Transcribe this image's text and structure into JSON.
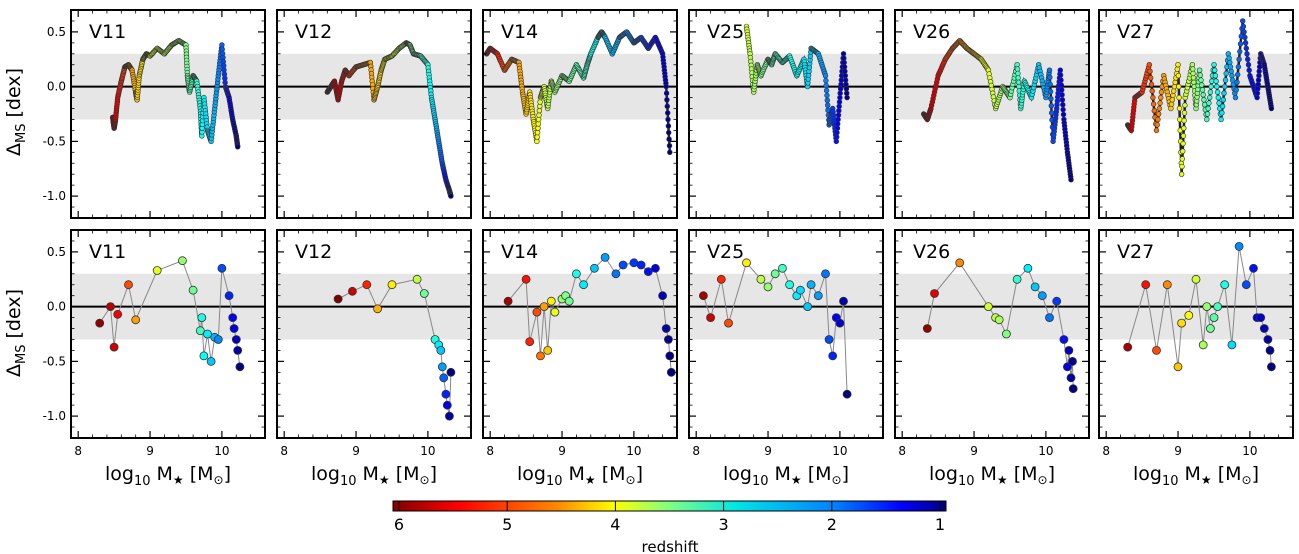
{
  "figure": {
    "ylabel_main": "Δ",
    "ylabel_sub": "MS",
    "ylabel_unit": " [dex]",
    "xlabel_main": "log",
    "xlabel_sub10": "10",
    "xlabel_rest": " M",
    "xlabel_star": "★",
    "xlabel_unit_open": " [M",
    "xlabel_sun": "⊙",
    "xlabel_unit_close": "]",
    "colorbar_label": "redshift",
    "colorbar_ticks": [
      "6",
      "5",
      "4",
      "3",
      "2",
      "1"
    ]
  },
  "chart_data": [
    {
      "type": "scatter",
      "row": "top",
      "panels": [
        "V11",
        "V12",
        "V14",
        "V25",
        "V26",
        "V27"
      ],
      "xlim": [
        7.9,
        10.6
      ],
      "ylim": [
        -1.2,
        0.7
      ],
      "xticks": [
        "8",
        "9",
        "10"
      ],
      "yticks": [
        "0.5",
        "0.0",
        "-0.5",
        "-1.0"
      ],
      "band": [
        -0.3,
        0.3
      ],
      "series": [
        {
          "name": "V11",
          "x": [
            8.48,
            8.5,
            8.52,
            8.55,
            8.6,
            8.65,
            8.7,
            8.75,
            8.8,
            8.82,
            8.85,
            8.9,
            8.95,
            9.0,
            9.1,
            9.2,
            9.3,
            9.4,
            9.5,
            9.52,
            9.55,
            9.6,
            9.65,
            9.7,
            9.72,
            9.75,
            9.8,
            9.85,
            9.9,
            9.95,
            10.0,
            10.05,
            10.1,
            10.15,
            10.2,
            10.22
          ],
          "y": [
            -0.28,
            -0.38,
            -0.3,
            -0.1,
            0.05,
            0.18,
            0.2,
            0.15,
            -0.05,
            -0.12,
            0.1,
            0.25,
            0.3,
            0.28,
            0.35,
            0.3,
            0.38,
            0.42,
            0.38,
            0.1,
            -0.05,
            0.1,
            0.05,
            -0.2,
            -0.45,
            -0.1,
            -0.4,
            -0.5,
            -0.2,
            0.1,
            0.38,
            0.0,
            -0.1,
            -0.3,
            -0.45,
            -0.55
          ],
          "z": [
            5.9,
            5.8,
            5.6,
            5.4,
            5.2,
            5.0,
            4.8,
            4.6,
            4.5,
            4.4,
            4.3,
            4.2,
            4.1,
            4.0,
            3.9,
            3.8,
            3.7,
            3.6,
            3.5,
            3.4,
            3.3,
            3.2,
            3.1,
            3.0,
            2.9,
            2.8,
            2.7,
            2.6,
            2.5,
            2.3,
            2.1,
            1.8,
            1.5,
            1.3,
            1.1,
            1.0
          ]
        },
        {
          "name": "V12",
          "x": [
            8.6,
            8.65,
            8.7,
            8.75,
            8.8,
            8.85,
            8.9,
            9.0,
            9.1,
            9.2,
            9.25,
            9.3,
            9.35,
            9.4,
            9.5,
            9.6,
            9.7,
            9.75,
            9.8,
            9.9,
            10.0,
            10.05,
            10.1,
            10.15,
            10.2,
            10.25,
            10.3,
            10.32
          ],
          "y": [
            -0.05,
            0.0,
            0.05,
            -0.12,
            0.05,
            0.15,
            0.1,
            0.18,
            0.2,
            0.22,
            -0.12,
            0.0,
            0.15,
            0.25,
            0.28,
            0.35,
            0.4,
            0.38,
            0.3,
            0.28,
            0.2,
            -0.1,
            -0.3,
            -0.5,
            -0.7,
            -0.85,
            -0.95,
            -1.0
          ],
          "z": [
            6.0,
            5.9,
            5.8,
            5.7,
            5.6,
            5.4,
            5.2,
            5.0,
            4.8,
            4.6,
            4.5,
            4.4,
            4.3,
            4.2,
            4.0,
            3.8,
            3.6,
            3.5,
            3.4,
            3.2,
            3.0,
            2.8,
            2.6,
            2.3,
            2.0,
            1.6,
            1.2,
            1.0
          ]
        },
        {
          "name": "V14",
          "x": [
            7.95,
            8.0,
            8.1,
            8.2,
            8.3,
            8.4,
            8.45,
            8.5,
            8.55,
            8.6,
            8.65,
            8.7,
            8.75,
            8.8,
            8.85,
            8.9,
            9.0,
            9.1,
            9.2,
            9.3,
            9.35,
            9.4,
            9.5,
            9.55,
            9.6,
            9.7,
            9.8,
            9.9,
            10.0,
            10.1,
            10.2,
            10.3,
            10.4,
            10.45,
            10.5
          ],
          "y": [
            0.3,
            0.35,
            0.3,
            0.15,
            0.25,
            0.22,
            -0.05,
            -0.25,
            -0.05,
            -0.3,
            -0.5,
            -0.1,
            0.0,
            -0.2,
            0.05,
            -0.05,
            0.1,
            0.05,
            0.2,
            0.08,
            0.2,
            0.3,
            0.45,
            0.5,
            0.45,
            0.3,
            0.45,
            0.5,
            0.4,
            0.45,
            0.35,
            0.45,
            0.3,
            0.0,
            -0.6
          ],
          "z": [
            5.6,
            5.5,
            5.3,
            5.0,
            4.8,
            4.6,
            4.5,
            4.4,
            4.3,
            4.2,
            4.1,
            4.0,
            3.9,
            3.8,
            3.7,
            3.6,
            3.5,
            3.4,
            3.3,
            3.2,
            3.1,
            3.0,
            2.8,
            2.7,
            2.6,
            2.5,
            2.4,
            2.3,
            2.2,
            2.0,
            1.8,
            1.6,
            1.4,
            1.2,
            1.0
          ]
        },
        {
          "name": "V25",
          "x": [
            8.7,
            8.75,
            8.8,
            8.85,
            8.9,
            9.0,
            9.05,
            9.1,
            9.2,
            9.3,
            9.4,
            9.5,
            9.55,
            9.6,
            9.7,
            9.8,
            9.85,
            9.9,
            9.95,
            10.0,
            10.05,
            10.1
          ],
          "y": [
            0.55,
            0.3,
            -0.05,
            0.2,
            0.1,
            0.25,
            0.2,
            0.3,
            0.22,
            0.28,
            0.1,
            0.25,
            0.0,
            0.35,
            0.3,
            0.1,
            -0.35,
            -0.2,
            -0.5,
            -0.1,
            0.3,
            -0.1
          ],
          "z": [
            3.9,
            3.8,
            3.7,
            3.6,
            3.5,
            3.4,
            3.3,
            3.2,
            3.1,
            3.0,
            2.9,
            2.8,
            2.7,
            2.6,
            2.5,
            2.3,
            2.1,
            1.9,
            1.7,
            1.5,
            1.3,
            1.1
          ]
        },
        {
          "name": "V26",
          "x": [
            8.3,
            8.35,
            8.4,
            8.5,
            8.6,
            8.7,
            8.8,
            8.9,
            9.0,
            9.1,
            9.2,
            9.3,
            9.4,
            9.5,
            9.6,
            9.65,
            9.7,
            9.8,
            9.9,
            10.0,
            10.05,
            10.1,
            10.15,
            10.2,
            10.25,
            10.3,
            10.35
          ],
          "y": [
            -0.25,
            -0.3,
            -0.2,
            0.1,
            0.25,
            0.35,
            0.42,
            0.35,
            0.3,
            0.25,
            0.15,
            -0.2,
            0.0,
            -0.1,
            0.2,
            -0.2,
            0.05,
            -0.1,
            0.2,
            -0.1,
            0.15,
            -0.5,
            -0.2,
            0.15,
            -0.3,
            -0.6,
            -0.85
          ],
          "z": [
            5.9,
            5.8,
            5.7,
            5.5,
            5.2,
            5.0,
            4.8,
            4.6,
            4.4,
            4.2,
            4.0,
            3.8,
            3.6,
            3.4,
            3.2,
            3.1,
            3.0,
            2.8,
            2.6,
            2.4,
            2.2,
            2.0,
            1.8,
            1.6,
            1.4,
            1.2,
            1.0
          ]
        },
        {
          "name": "V27",
          "x": [
            8.3,
            8.35,
            8.4,
            8.5,
            8.6,
            8.7,
            8.8,
            8.9,
            9.0,
            9.05,
            9.1,
            9.2,
            9.25,
            9.3,
            9.4,
            9.5,
            9.6,
            9.7,
            9.8,
            9.9,
            10.0,
            10.1,
            10.15,
            10.2,
            10.25,
            10.3
          ],
          "y": [
            -0.35,
            -0.4,
            -0.1,
            -0.05,
            0.2,
            -0.4,
            0.1,
            -0.2,
            0.2,
            -0.8,
            -0.1,
            0.2,
            -0.2,
            0.15,
            -0.3,
            0.2,
            -0.3,
            0.3,
            -0.1,
            0.6,
            0.1,
            -0.1,
            0.3,
            0.2,
            0.0,
            -0.2
          ],
          "z": [
            5.7,
            5.6,
            5.4,
            5.2,
            5.0,
            4.8,
            4.6,
            4.4,
            4.2,
            4.0,
            3.9,
            3.7,
            3.6,
            3.4,
            3.2,
            3.0,
            2.8,
            2.5,
            2.3,
            2.0,
            1.7,
            1.5,
            1.3,
            1.2,
            1.1,
            1.0
          ]
        }
      ]
    },
    {
      "type": "scatter",
      "row": "bottom",
      "panels": [
        "V11",
        "V12",
        "V14",
        "V25",
        "V26",
        "V27"
      ],
      "xlim": [
        7.9,
        10.6
      ],
      "ylim": [
        -1.2,
        0.7
      ],
      "xticks": [
        "8",
        "9",
        "10"
      ],
      "yticks": [
        "0.5",
        "0.0",
        "-0.5",
        "-1.0"
      ],
      "band": [
        -0.3,
        0.3
      ],
      "series": [
        {
          "name": "V11",
          "x": [
            8.3,
            8.45,
            8.5,
            8.55,
            8.7,
            8.8,
            9.1,
            9.45,
            9.6,
            9.7,
            9.72,
            9.75,
            9.8,
            9.85,
            9.9,
            9.95,
            10.0,
            10.1,
            10.15,
            10.17,
            10.2,
            10.22,
            10.25
          ],
          "y": [
            -0.15,
            0.0,
            -0.37,
            -0.07,
            0.2,
            -0.12,
            0.33,
            0.42,
            0.15,
            -0.22,
            -0.1,
            -0.45,
            -0.25,
            -0.5,
            -0.28,
            -0.3,
            0.35,
            0.1,
            -0.1,
            -0.2,
            -0.3,
            -0.4,
            -0.55
          ],
          "z": [
            5.9,
            5.7,
            5.6,
            5.4,
            5.0,
            4.6,
            4.0,
            3.6,
            3.4,
            3.2,
            3.0,
            2.9,
            2.8,
            2.6,
            2.5,
            2.3,
            2.0,
            1.8,
            1.6,
            1.5,
            1.3,
            1.2,
            1.0
          ]
        },
        {
          "name": "V12",
          "x": [
            8.75,
            8.95,
            9.15,
            9.3,
            9.5,
            9.85,
            9.95,
            10.1,
            10.15,
            10.18,
            10.2,
            10.22,
            10.25,
            10.27,
            10.3,
            10.32
          ],
          "y": [
            0.07,
            0.14,
            0.2,
            -0.02,
            0.2,
            0.25,
            0.12,
            -0.3,
            -0.35,
            -0.4,
            -0.55,
            -0.65,
            -0.8,
            -0.9,
            -1.0,
            -0.6
          ],
          "z": [
            6.0,
            5.6,
            5.2,
            4.5,
            4.2,
            3.8,
            3.4,
            3.0,
            2.8,
            2.6,
            2.4,
            2.1,
            1.8,
            1.5,
            1.2,
            1.0
          ]
        },
        {
          "name": "V14",
          "x": [
            8.25,
            8.5,
            8.55,
            8.65,
            8.7,
            8.75,
            8.8,
            8.85,
            8.9,
            9.0,
            9.05,
            9.1,
            9.2,
            9.3,
            9.45,
            9.6,
            9.75,
            9.85,
            10.0,
            10.1,
            10.2,
            10.3,
            10.4,
            10.45,
            10.48,
            10.5,
            10.52
          ],
          "y": [
            0.05,
            0.25,
            -0.32,
            -0.05,
            -0.45,
            0.0,
            -0.4,
            0.05,
            -0.05,
            0.07,
            0.1,
            0.05,
            0.3,
            0.2,
            0.35,
            0.45,
            0.3,
            0.38,
            0.4,
            0.38,
            0.32,
            0.35,
            0.1,
            -0.2,
            -0.3,
            -0.45,
            -0.6
          ],
          "z": [
            5.8,
            5.3,
            5.2,
            5.0,
            4.8,
            4.6,
            4.4,
            4.2,
            4.0,
            3.6,
            3.5,
            3.4,
            3.0,
            2.8,
            2.6,
            2.4,
            2.2,
            2.0,
            1.9,
            1.8,
            1.7,
            1.5,
            1.3,
            1.2,
            1.1,
            1.05,
            1.0
          ]
        },
        {
          "name": "V25",
          "x": [
            8.1,
            8.2,
            8.35,
            8.45,
            8.7,
            8.9,
            9.0,
            9.1,
            9.2,
            9.3,
            9.4,
            9.45,
            9.55,
            9.6,
            9.7,
            9.8,
            9.85,
            9.9,
            9.95,
            10.0,
            10.05,
            10.1
          ],
          "y": [
            0.1,
            -0.1,
            0.25,
            -0.15,
            0.4,
            0.25,
            0.18,
            0.3,
            0.35,
            0.2,
            0.1,
            0.15,
            0.0,
            0.2,
            0.1,
            0.3,
            -0.3,
            -0.45,
            -0.1,
            -0.15,
            0.05,
            -0.8
          ],
          "z": [
            5.8,
            5.6,
            5.2,
            5.0,
            4.2,
            3.8,
            3.6,
            3.4,
            3.2,
            3.0,
            2.8,
            2.7,
            2.6,
            2.5,
            2.4,
            2.2,
            2.0,
            1.8,
            1.6,
            1.4,
            1.2,
            1.0
          ]
        },
        {
          "name": "V26",
          "x": [
            8.35,
            8.45,
            8.8,
            9.2,
            9.3,
            9.35,
            9.45,
            9.6,
            9.75,
            9.85,
            9.95,
            10.05,
            10.15,
            10.25,
            10.3,
            10.32,
            10.35,
            10.37,
            10.38
          ],
          "y": [
            -0.2,
            0.12,
            0.4,
            0.0,
            -0.1,
            -0.12,
            -0.25,
            0.25,
            0.35,
            0.18,
            0.1,
            -0.1,
            0.05,
            -0.3,
            -0.55,
            -0.4,
            -0.65,
            -0.5,
            -0.75
          ],
          "z": [
            5.9,
            5.5,
            4.7,
            3.9,
            3.8,
            3.7,
            3.5,
            3.1,
            2.8,
            2.6,
            2.4,
            2.2,
            1.9,
            1.7,
            1.5,
            1.3,
            1.2,
            1.1,
            1.0
          ]
        },
        {
          "name": "V27",
          "x": [
            8.3,
            8.55,
            8.7,
            8.85,
            9.0,
            9.05,
            9.15,
            9.25,
            9.35,
            9.4,
            9.45,
            9.5,
            9.55,
            9.65,
            9.75,
            9.85,
            9.95,
            10.05,
            10.1,
            10.15,
            10.2,
            10.25,
            10.28,
            10.3
          ],
          "y": [
            -0.37,
            0.2,
            -0.4,
            0.2,
            -0.55,
            -0.15,
            -0.08,
            0.25,
            -0.35,
            0.0,
            -0.2,
            -0.1,
            0.0,
            0.2,
            -0.35,
            0.55,
            0.2,
            0.35,
            -0.1,
            -0.1,
            -0.2,
            -0.3,
            -0.4,
            -0.55
          ],
          "z": [
            5.8,
            5.3,
            5.0,
            4.7,
            4.4,
            4.3,
            4.1,
            3.9,
            3.7,
            3.6,
            3.4,
            3.3,
            3.2,
            3.0,
            2.7,
            2.3,
            2.0,
            1.7,
            1.5,
            1.4,
            1.3,
            1.2,
            1.1,
            1.0
          ]
        }
      ]
    }
  ]
}
